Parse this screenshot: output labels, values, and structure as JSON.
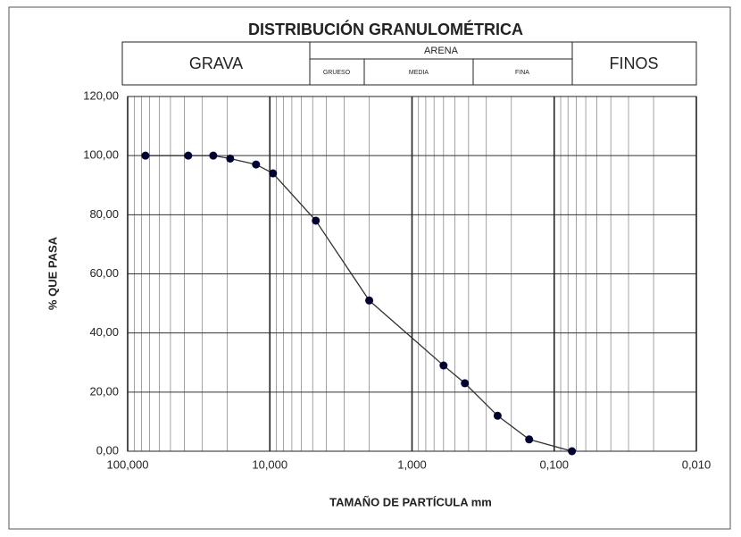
{
  "chart_data": {
    "type": "line",
    "title": "DISTRIBUCIÓN GRANULOMÉTRICA",
    "header": {
      "grava": "GRAVA",
      "arena": "ARENA",
      "grueso": "GRUESO",
      "media": "MEDIA",
      "fina": "FINA",
      "finos": "FINOS"
    },
    "x_label": "TAMAÑO DE PARTÍCULA mm",
    "y_label": "% QUE PASA",
    "x_log": true,
    "grid": true,
    "x": [
      75,
      37.5,
      25,
      19,
      12.5,
      9.5,
      4.75,
      2.0,
      0.6,
      0.425,
      0.25,
      0.15,
      0.075
    ],
    "series": [
      {
        "color": "#000033",
        "values": [
          100,
          100,
          100,
          99,
          97,
          94,
          78,
          51,
          29,
          23,
          12,
          4,
          0
        ]
      }
    ],
    "xlim": [
      100,
      0.01
    ],
    "xticks": [
      {
        "value": 100,
        "label": "100,000"
      },
      {
        "value": 10,
        "label": "10,000"
      },
      {
        "value": 1,
        "label": "1,000"
      },
      {
        "value": 0.1,
        "label": "0,100"
      },
      {
        "value": 0.01,
        "label": "0,010"
      }
    ],
    "ylim": [
      0,
      120
    ],
    "yticks": [
      {
        "value": 0,
        "label": "0,00"
      },
      {
        "value": 20,
        "label": "20,00"
      },
      {
        "value": 40,
        "label": "40,00"
      },
      {
        "value": 60,
        "label": "60,00"
      },
      {
        "value": 80,
        "label": "80,00"
      },
      {
        "value": 100,
        "label": "100,00"
      },
      {
        "value": 120,
        "label": "120,00"
      }
    ]
  }
}
